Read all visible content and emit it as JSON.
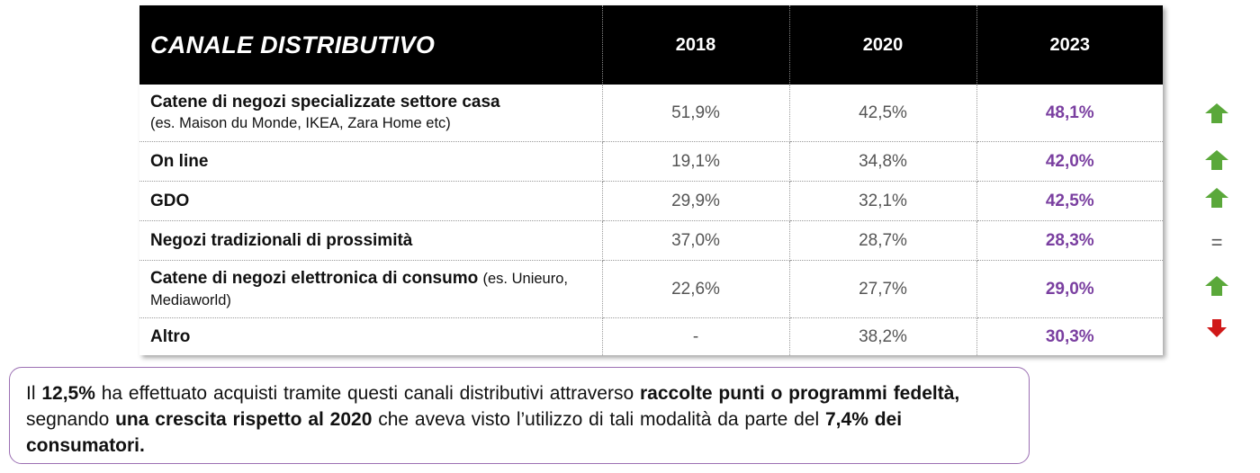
{
  "table": {
    "header": {
      "title": "CANALE DISTRIBUTIVO",
      "years": [
        "2018",
        "2020",
        "2023"
      ]
    },
    "rows": [
      {
        "label": "Catene di negozi specializzate settore casa",
        "detail": "(es. Maison du Monde, IKEA, Zara Home etc)",
        "v2018": "51,9%",
        "v2020": "42,5%",
        "v2023": "48,1%",
        "trend": "up-arrow-icon"
      },
      {
        "label": "On line",
        "v2018": "19,1%",
        "v2020": "34,8%",
        "v2023": "42,0%",
        "trend": "up-arrow-icon"
      },
      {
        "label": "GDO",
        "v2018": "29,9%",
        "v2020": "32,1%",
        "v2023": "42,5%",
        "trend": "up-arrow-icon"
      },
      {
        "label": "Negozi tradizionali di prossimità",
        "v2018": "37,0%",
        "v2020": "28,7%",
        "v2023": "28,3%",
        "trend": "="
      },
      {
        "label": "Catene di negozi elettronica di consumo",
        "detail": "(es. Unieuro, Mediaworld)",
        "v2018": "22,6%",
        "v2020": "27,7%",
        "v2023": "29,0%",
        "trend": "up-arrow-icon"
      },
      {
        "label": "Altro",
        "v2018": "-",
        "v2020": "38,2%",
        "v2023": "30,3%",
        "trend": "down-arrow-icon"
      }
    ]
  },
  "colors": {
    "up": "#5aa83a",
    "down": "#d01818",
    "highlight": "#7a3fa0",
    "note_border": "#9b6fb3"
  },
  "note": {
    "p1": "Il ",
    "b1": "12,5%",
    "p2": " ha effettuato acquisti tramite questi canali distributivi attraverso ",
    "b2": "raccolte punti o programmi fedeltà,",
    "p3": " segnando ",
    "b3": "una crescita rispetto al 2020",
    "p4": " che aveva visto l’utilizzo di tali modalità da parte del ",
    "b4": "7,4% dei consumatori."
  }
}
